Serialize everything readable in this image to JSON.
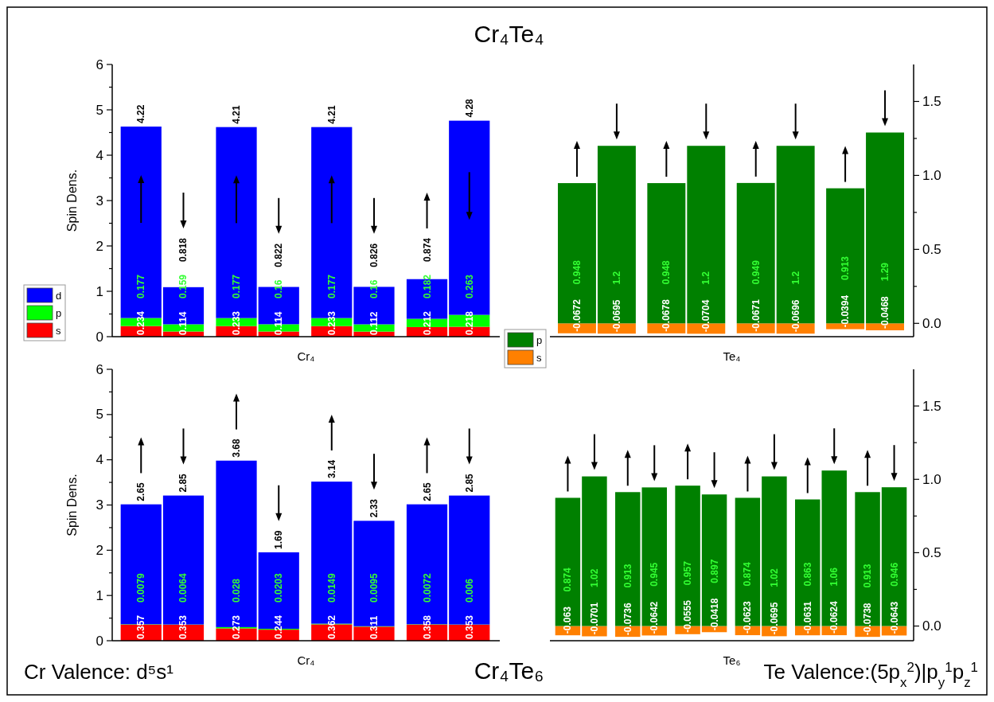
{
  "chart_data": [
    {
      "type": "bar",
      "title": "Cr₄Te₄",
      "xlabel": "Cr₄",
      "ylabel": "Spin Dens.",
      "stacked": true,
      "data_labels": true,
      "legend": "bottom left",
      "categories": [
        null,
        null,
        null,
        null,
        null,
        null,
        null,
        null
      ],
      "ylim": [
        0,
        6
      ],
      "yticks": [
        0,
        {
          "value": 0.5,
          "label": null
        },
        1,
        {
          "value": 1.5,
          "label": null
        },
        2,
        {
          "value": 2.5,
          "label": null
        },
        3,
        {
          "value": 3.5,
          "label": null
        },
        4,
        {
          "value": 4.5,
          "label": null
        },
        5,
        {
          "value": 5.5,
          "label": null
        },
        6
      ],
      "series": [
        {
          "name": "s",
          "color": "#ff0000",
          "values": [
            0.234,
            0.114,
            0.233,
            0.114,
            0.233,
            0.112,
            0.212,
            0.218
          ]
        },
        {
          "name": "p",
          "color": "#00ff00",
          "values": [
            0.177,
            0.159,
            0.177,
            0.16,
            0.177,
            0.16,
            0.182,
            0.263
          ]
        },
        {
          "name": "d",
          "color": "#0000ff",
          "values": [
            4.22,
            0.818,
            4.21,
            0.822,
            4.21,
            0.826,
            0.874,
            4.28
          ]
        }
      ]
    },
    {
      "type": "bar",
      "xlabel": "Te₄",
      "stacked": true,
      "data_labels": true,
      "categories": [
        null,
        null,
        null,
        null,
        null,
        null,
        null,
        null
      ],
      "y2lim": [
        -0.09,
        1.75
      ],
      "y2ticks": [
        {
          "value": 0,
          "label": "0.0"
        },
        {
          "value": 0.25,
          "label": null
        },
        {
          "value": 0.5,
          "label": "0.5"
        },
        {
          "value": 0.75,
          "label": null
        },
        {
          "value": 1,
          "label": "1.0"
        },
        {
          "value": 1.25,
          "label": null
        },
        {
          "value": 1.5,
          "label": "1.5"
        }
      ],
      "series": [
        {
          "color": "#ff8000",
          "axis": "y2",
          "values": [
            -0.0672,
            -0.0695,
            -0.0678,
            -0.0704,
            -0.0671,
            -0.0696,
            -0.0394,
            -0.0468
          ]
        },
        {
          "color": "#008000",
          "axis": "y2",
          "values": [
            0.948,
            1.2,
            0.948,
            1.2,
            0.949,
            1.2,
            0.913,
            1.29
          ]
        }
      ]
    },
    {
      "type": "bar",
      "title": "Cr₄Te₆",
      "xlabel": "Cr₄",
      "ylabel": "Spin Dens.",
      "stacked": true,
      "data_labels": true,
      "annotations": [
        "Cr Valence: d⁵s¹"
      ],
      "categories": [
        null,
        null,
        null,
        null,
        null,
        null,
        null,
        null
      ],
      "ylim": [
        0,
        6
      ],
      "yticks": [
        0,
        {
          "value": 0.5,
          "label": null
        },
        1,
        {
          "value": 1.5,
          "label": null
        },
        2,
        {
          "value": 2.5,
          "label": null
        },
        3,
        {
          "value": 3.5,
          "label": null
        },
        4,
        {
          "value": 4.5,
          "label": null
        },
        5,
        {
          "value": 5.5,
          "label": null
        },
        6
      ],
      "series": [
        {
          "color": "#ff0000",
          "values": [
            0.357,
            0.353,
            0.273,
            0.244,
            0.362,
            0.311,
            0.358,
            0.353
          ]
        },
        {
          "color": "#00ff00",
          "values": [
            0.0079,
            0.0064,
            0.028,
            0.0203,
            0.0149,
            0.0095,
            0.0072,
            0.006
          ]
        },
        {
          "color": "#0000ff",
          "values": [
            2.65,
            2.85,
            3.68,
            1.69,
            3.14,
            2.33,
            2.65,
            2.85
          ]
        }
      ]
    },
    {
      "type": "bar",
      "xlabel": "Te₆",
      "stacked": true,
      "data_labels": true,
      "legend": "top left",
      "annotations": [
        "Te Valence:(5p$_{x}$$^{2}$)|p$_{y}$$^{1}$p$_{z}$$^{1}$"
      ],
      "categories": [
        null,
        null,
        null,
        null,
        null,
        null,
        null,
        null,
        null,
        null,
        null,
        null
      ],
      "y2lim": [
        -0.1,
        1.75
      ],
      "y2ticks": [
        {
          "value": 0,
          "label": "0.0"
        },
        {
          "value": 0.25,
          "label": null
        },
        {
          "value": 0.5,
          "label": "0.5"
        },
        {
          "value": 0.75,
          "label": null
        },
        {
          "value": 1,
          "label": "1.0"
        },
        {
          "value": 1.25,
          "label": null
        },
        {
          "value": 1.5,
          "label": "1.5"
        }
      ],
      "series": [
        {
          "name": "s",
          "color": "#ff8000",
          "axis": "y2",
          "values": [
            -0.063,
            -0.0701,
            -0.0736,
            -0.0642,
            -0.0555,
            -0.0418,
            -0.0623,
            -0.0695,
            -0.0631,
            -0.0624,
            -0.0738,
            -0.0643
          ]
        },
        {
          "name": "p",
          "color": "#008000",
          "axis": "y2",
          "values": [
            0.874,
            1.02,
            0.913,
            0.945,
            0.957,
            0.897,
            0.874,
            1.02,
            0.863,
            1.06,
            0.913,
            0.946
          ]
        }
      ]
    }
  ]
}
